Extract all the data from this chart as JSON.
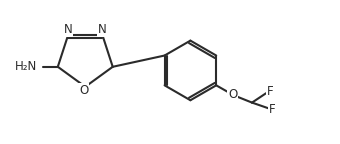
{
  "bg_color": "#ffffff",
  "bond_color": "#2b2b2b",
  "text_color": "#2b2b2b",
  "fig_width": 3.4,
  "fig_height": 1.44,
  "dpi": 100,
  "xlim": [
    0,
    10.5
  ],
  "ylim": [
    0,
    4.5
  ]
}
